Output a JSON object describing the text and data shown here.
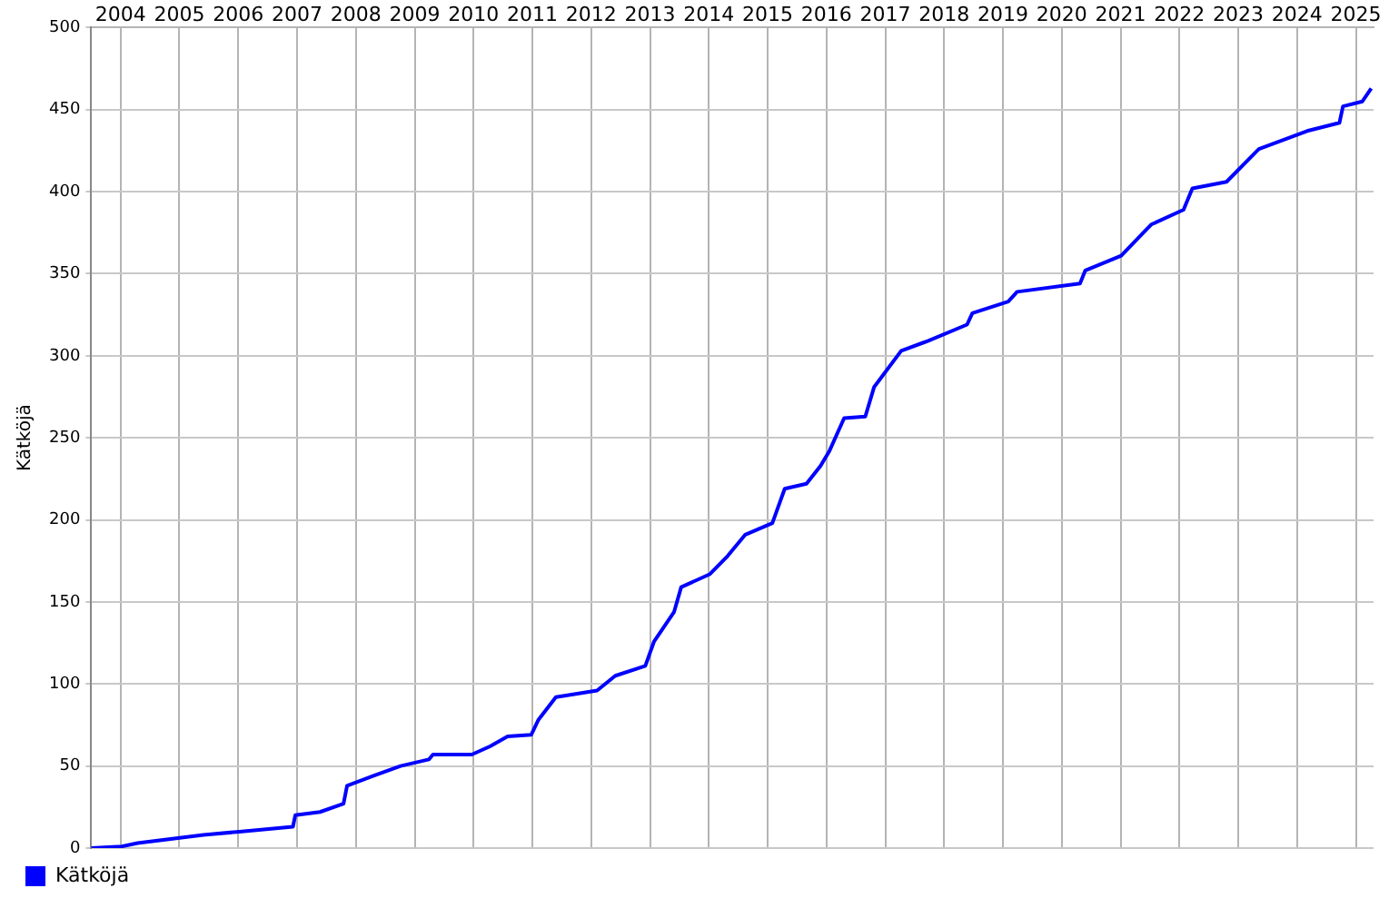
{
  "chart_data": {
    "type": "line",
    "ylabel": "Kätköjä",
    "legend": "bottom left",
    "grid": true,
    "marker": "none",
    "line_style": "solid",
    "xlim": [
      2004,
      2025.8
    ],
    "xticks": [
      {
        "value": 2004.5,
        "label": "2004"
      },
      {
        "value": 2005.5,
        "label": "2005"
      },
      {
        "value": 2006.5,
        "label": "2006"
      },
      {
        "value": 2007.5,
        "label": "2007"
      },
      {
        "value": 2008.5,
        "label": "2008"
      },
      {
        "value": 2009.5,
        "label": "2009"
      },
      {
        "value": 2010.5,
        "label": "2010"
      },
      {
        "value": 2011.5,
        "label": "2011"
      },
      {
        "value": 2012.5,
        "label": "2012"
      },
      {
        "value": 2013.5,
        "label": "2013"
      },
      {
        "value": 2014.5,
        "label": "2014"
      },
      {
        "value": 2015.5,
        "label": "2015"
      },
      {
        "value": 2016.5,
        "label": "2016"
      },
      {
        "value": 2017.5,
        "label": "2017"
      },
      {
        "value": 2018.5,
        "label": "2018"
      },
      {
        "value": 2019.5,
        "label": "2019"
      },
      {
        "value": 2020.5,
        "label": "2020"
      },
      {
        "value": 2021.5,
        "label": "2021"
      },
      {
        "value": 2022.5,
        "label": "2022"
      },
      {
        "value": 2023.5,
        "label": "2023"
      },
      {
        "value": 2024.5,
        "label": "2024"
      },
      {
        "value": 2025.5,
        "label": "2025"
      }
    ],
    "ylim": [
      0,
      500
    ],
    "yticks": [
      0,
      50,
      100,
      150,
      200,
      250,
      300,
      350,
      400,
      450,
      500
    ],
    "series": [
      {
        "name": "Kätköjä",
        "color": "#0000ff",
        "x": [
          2004.0,
          2004.52,
          2004.79,
          2005.91,
          2006.52,
          2007.43,
          2007.47,
          2007.89,
          2008.29,
          2008.35,
          2008.8,
          2009.26,
          2009.74,
          2009.81,
          2010.47,
          2010.78,
          2011.08,
          2011.48,
          2011.6,
          2011.9,
          2012.6,
          2012.91,
          2013.42,
          2013.57,
          2013.91,
          2014.03,
          2014.52,
          2014.82,
          2015.12,
          2015.58,
          2015.79,
          2016.16,
          2016.4,
          2016.55,
          2016.8,
          2017.16,
          2017.31,
          2017.77,
          2018.22,
          2018.89,
          2018.98,
          2019.59,
          2019.74,
          2020.81,
          2020.9,
          2021.51,
          2022.02,
          2022.57,
          2022.72,
          2023.3,
          2023.85,
          2024.67,
          2025.22,
          2025.28,
          2025.61,
          2025.76
        ],
        "values": [
          0,
          1,
          3,
          8,
          10,
          13,
          20,
          22,
          27,
          38,
          44,
          50,
          54,
          57,
          57,
          62,
          68,
          69,
          78,
          92,
          96,
          105,
          111,
          126,
          144,
          159,
          167,
          178,
          191,
          198,
          219,
          222,
          233,
          242,
          262,
          263,
          281,
          303,
          309,
          319,
          326,
          333,
          339,
          344,
          352,
          361,
          380,
          389,
          402,
          406,
          426,
          437,
          442,
          452,
          455,
          463
        ]
      }
    ]
  }
}
